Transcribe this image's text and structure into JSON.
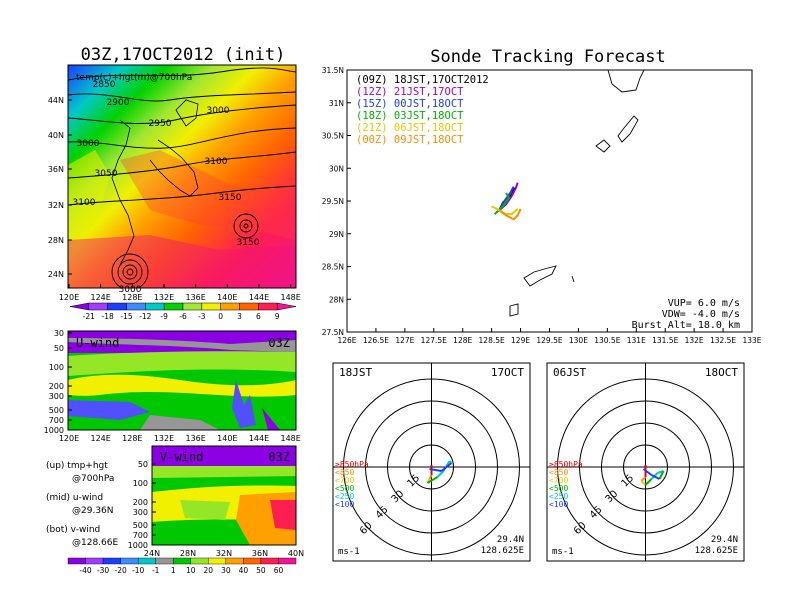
{
  "left": {
    "title": "03Z,17OCT2012 (init)",
    "map": {
      "field_label": "temp(c)+hgt(m)@700hPa",
      "lat_ticks": [
        "44N",
        "40N",
        "36N",
        "32N",
        "28N",
        "24N"
      ],
      "lon_ticks": [
        "120E",
        "124E",
        "128E",
        "132E",
        "136E",
        "140E",
        "144E",
        "148E"
      ],
      "contour_labels": [
        "2850",
        "2900",
        "2950",
        "3000",
        "3000",
        "3050",
        "3100",
        "3100",
        "3150",
        "3150",
        "3000"
      ]
    },
    "temp_colorbar": [
      "-21",
      "-18",
      "-15",
      "-12",
      "-9",
      "-6",
      "-3",
      "0",
      "3",
      "6",
      "9"
    ],
    "uwind": {
      "label": "U-wind",
      "time": "03Z",
      "p_ticks": [
        "30",
        "50",
        "100",
        "200",
        "300",
        "500",
        "700",
        "1000"
      ],
      "lon_ticks": [
        "120E",
        "124E",
        "128E",
        "132E",
        "136E",
        "140E",
        "144E",
        "148E"
      ]
    },
    "vwind": {
      "label": "V-wind",
      "time": "03Z",
      "p_ticks": [
        "50",
        "100",
        "200",
        "300",
        "500",
        "700",
        "1000"
      ],
      "lat_ticks": [
        "24N",
        "28N",
        "32N",
        "36N",
        "40N"
      ]
    },
    "legend": [
      {
        "text": "(up) tmp+hgt"
      },
      {
        "text": "@700hPa"
      },
      {
        "text": "(mid) u-wind"
      },
      {
        "text": "@29.36N"
      },
      {
        "text": "(bot) v-wind"
      },
      {
        "text": "@128.66E"
      }
    ],
    "wind_colorbar": [
      "-40",
      "-30",
      "-20",
      "-10",
      "-1",
      "1",
      "10",
      "20",
      "30",
      "40",
      "50",
      "60"
    ]
  },
  "right": {
    "title": "Sonde Tracking Forecast",
    "chart_data": {
      "type": "line",
      "title": "Sonde Tracking Forecast",
      "xlim": [
        126,
        133
      ],
      "ylim": [
        27.5,
        31.5
      ],
      "x_ticks": [
        "126E",
        "126.5E",
        "127E",
        "127.5E",
        "128E",
        "128.5E",
        "129E",
        "129.5E",
        "130E",
        "130.5E",
        "131E",
        "131.5E",
        "132E",
        "132.5E",
        "133E"
      ],
      "y_ticks": [
        "31.5N",
        "31N",
        "30.5N",
        "30N",
        "29.5N",
        "29N",
        "28.5N",
        "28N",
        "27.5N"
      ],
      "legend_placement": "top-left",
      "series": [
        {
          "name": "(09Z) 18JST,17OCT2012",
          "color": "#000000",
          "x": [
            128.63,
            128.7,
            128.8,
            128.85,
            128.9
          ],
          "y": [
            29.36,
            29.48,
            29.55,
            29.6,
            29.7
          ]
        },
        {
          "name": "(12Z) 21JST,17OCT",
          "color": "#a000c8",
          "x": [
            128.63,
            128.75,
            128.85,
            128.92,
            128.95
          ],
          "y": [
            29.36,
            29.45,
            29.58,
            29.7,
            29.78
          ]
        },
        {
          "name": "(15Z) 00JST,18OCT",
          "color": "#1e3cff",
          "x": [
            128.63,
            128.72,
            128.82,
            128.88
          ],
          "y": [
            29.36,
            29.5,
            29.62,
            29.72
          ]
        },
        {
          "name": "(18Z) 03JST,18OCT",
          "color": "#00b400",
          "x": [
            128.55,
            128.63,
            128.72,
            128.8,
            128.75
          ],
          "y": [
            29.3,
            29.36,
            29.45,
            29.55,
            29.62
          ]
        },
        {
          "name": "(21Z) 06JST,18OCT",
          "color": "#e6c800",
          "x": [
            128.5,
            128.63,
            128.75,
            128.85,
            128.95
          ],
          "y": [
            29.42,
            29.36,
            29.3,
            29.3,
            29.38
          ]
        },
        {
          "name": "(00Z) 09JST,18OCT",
          "color": "#ff8c00",
          "x": [
            128.63,
            128.75,
            128.88,
            128.95,
            129.0
          ],
          "y": [
            29.36,
            29.28,
            29.22,
            29.28,
            29.38
          ]
        }
      ],
      "params": [
        {
          "label": "VUP= 6.0 m/s"
        },
        {
          "label": "VDW= -4.0 m/s"
        },
        {
          "label": "Burst Alt= 18.0 km"
        }
      ]
    }
  },
  "hodographs": [
    {
      "left_label": "18JST",
      "right_label": "17OCT",
      "rings": [
        "15",
        "30",
        "45",
        "60"
      ],
      "units": "ms-1",
      "lat": "29.4N",
      "lon": "128.625E",
      "legend": [
        {
          "text": "≥850hPa",
          "color": "#e60000"
        },
        {
          "text": "<850",
          "color": "#ff8c00"
        },
        {
          "text": "<700",
          "color": "#e6c800"
        },
        {
          "text": "<500",
          "color": "#00b400"
        },
        {
          "text": "<250",
          "color": "#00c8c8"
        },
        {
          "text": "<100",
          "color": "#1e3cff"
        }
      ]
    },
    {
      "left_label": "06JST",
      "right_label": "18OCT",
      "rings": [
        "15",
        "30",
        "45",
        "60"
      ],
      "units": "ms-1",
      "lat": "29.4N",
      "lon": "128.625E",
      "legend": [
        {
          "text": "≥850hPa",
          "color": "#e60000"
        },
        {
          "text": "<850",
          "color": "#ff8c00"
        },
        {
          "text": "<700",
          "color": "#e6c800"
        },
        {
          "text": "<500",
          "color": "#00b400"
        },
        {
          "text": "<250",
          "color": "#00c8c8"
        },
        {
          "text": "<100",
          "color": "#1e3cff"
        }
      ]
    }
  ]
}
